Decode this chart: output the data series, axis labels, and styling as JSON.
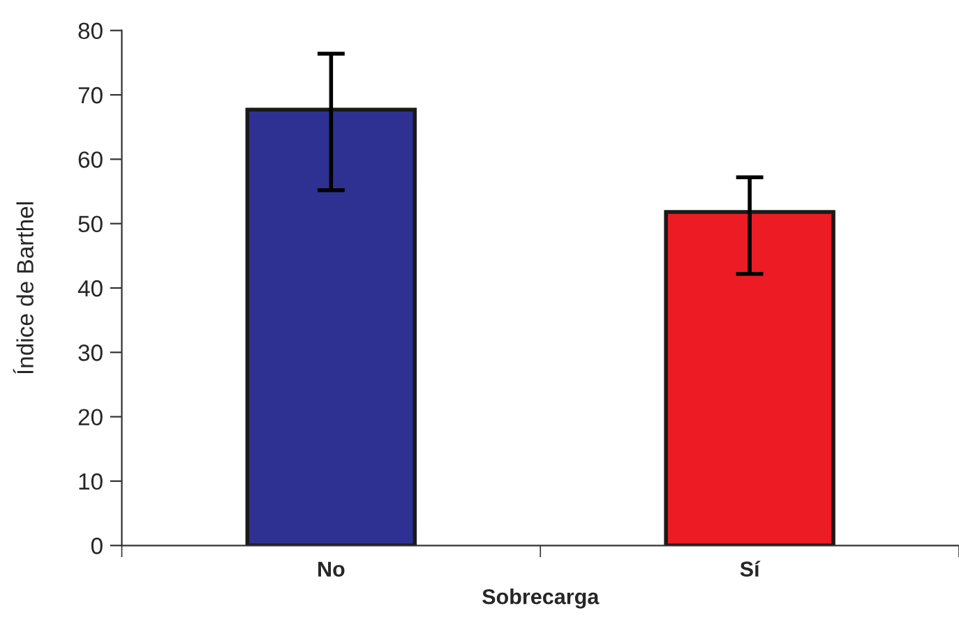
{
  "chart_data": {
    "type": "bar",
    "xlabel": "Sobrecarga",
    "ylabel": "Índice de Barthel",
    "categories": [
      "No",
      "Sí"
    ],
    "values": [
      67.7,
      51.8
    ],
    "colors": [
      "#2e3192",
      "#ed1c24"
    ],
    "errors": [
      [
        55.2,
        76.4
      ],
      [
        42.2,
        57.2
      ]
    ],
    "ylim": [
      0,
      80
    ],
    "yticks": [
      0,
      10,
      20,
      30,
      40,
      50,
      60,
      70,
      80
    ],
    "grid": false
  }
}
